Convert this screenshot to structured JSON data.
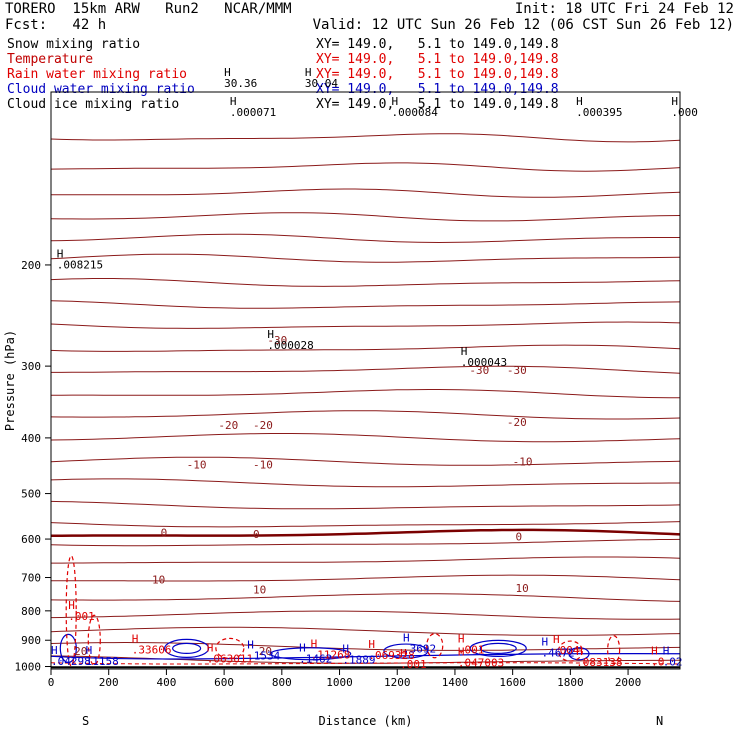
{
  "header": {
    "model": "TORERO  15km ARW   Run2   NCAR/MMM",
    "init": "Init: 18 UTC Fri 24 Feb 12",
    "fcst": "Fcst:   42 h",
    "valid": "Valid: 12 UTC Sun 26 Feb 12 (06 CST Sun 26 Feb 12)"
  },
  "legend": [
    {
      "name": "Snow mixing ratio",
      "xy": "XY= 149.0,   5.1 to 149.0,149.8",
      "color": "#000000"
    },
    {
      "name": "Temperature",
      "xy": "XY= 149.0,   5.1 to 149.0,149.8",
      "color": "#c00000"
    },
    {
      "name": "Rain water mixing ratio",
      "xy": "XY= 149.0,   5.1 to 149.0,149.8",
      "color": "#e00000"
    },
    {
      "name": "Cloud water mixing ratio",
      "xy": "XY= 149.0,   5.1 to 149.0,149.8",
      "color": "#0000c0"
    },
    {
      "name": "Cloud ice mixing ratio",
      "xy": "XY= 149.0,   5.1 to 149.0,149.8",
      "color": "#000000"
    }
  ],
  "chart_data": {
    "type": "line",
    "xlabel": "Distance (km)",
    "ylabel": "Pressure (hPa)",
    "xlim": [
      0,
      2180
    ],
    "ylim": [
      1010,
      100
    ],
    "x_ticks": [
      0,
      200,
      400,
      600,
      800,
      1000,
      1200,
      1400,
      1600,
      1800,
      2000
    ],
    "y_ticks": [
      200,
      300,
      400,
      500,
      600,
      700,
      800,
      900,
      1000
    ],
    "y_scale": "log",
    "end_labels": {
      "left": "S",
      "right": "N"
    },
    "temperature_labels": [
      {
        "x": 750,
        "p": 270,
        "text": "-30"
      },
      {
        "x": 1450,
        "p": 305,
        "text": "-30"
      },
      {
        "x": 1580,
        "p": 305,
        "text": "-30"
      },
      {
        "x": 580,
        "p": 380,
        "text": "-20"
      },
      {
        "x": 700,
        "p": 380,
        "text": "-20"
      },
      {
        "x": 1580,
        "p": 375,
        "text": "-20"
      },
      {
        "x": 470,
        "p": 445,
        "text": "-10"
      },
      {
        "x": 700,
        "p": 445,
        "text": "-10"
      },
      {
        "x": 1600,
        "p": 440,
        "text": "-10"
      },
      {
        "x": 380,
        "p": 585,
        "text": "0"
      },
      {
        "x": 700,
        "p": 588,
        "text": "0"
      },
      {
        "x": 1610,
        "p": 594,
        "text": "0"
      },
      {
        "x": 350,
        "p": 705,
        "text": "10"
      },
      {
        "x": 700,
        "p": 735,
        "text": "10"
      },
      {
        "x": 1610,
        "p": 730,
        "text": "10"
      },
      {
        "x": 80,
        "p": 940,
        "text": "20"
      },
      {
        "x": 720,
        "p": 940,
        "text": "20"
      }
    ],
    "snow_maxima": [
      {
        "x": 620,
        "p": 110,
        "text": ".000071"
      },
      {
        "x": 20,
        "p": 203,
        "text": ".008215"
      },
      {
        "x": 750,
        "p": 280,
        "text": ".000028"
      },
      {
        "x": 1420,
        "p": 300,
        "text": ".000043"
      },
      {
        "x": 1180,
        "p": 110,
        "text": ".000084"
      },
      {
        "x": 1820,
        "p": 110,
        "text": ".000395"
      },
      {
        "x": 2150,
        "p": 110,
        "text": ".000"
      },
      {
        "x": 600,
        "p": 98,
        "text": "30.36"
      },
      {
        "x": 880,
        "p": 98,
        "text": "30.04"
      }
    ],
    "rain_maxima": [
      {
        "x": 60,
        "p": 830,
        "text": ".001"
      },
      {
        "x": 280,
        "p": 950,
        "text": ".33606"
      },
      {
        "x": 540,
        "p": 985,
        "text": ".063011"
      },
      {
        "x": 900,
        "p": 968,
        "text": ".11268"
      },
      {
        "x": 1100,
        "p": 970,
        "text": ".069328"
      },
      {
        "x": 1210,
        "p": 1005,
        "text": ".001"
      },
      {
        "x": 1410,
        "p": 950,
        "text": ".001"
      },
      {
        "x": 1410,
        "p": 1000,
        "text": ".047003"
      },
      {
        "x": 1740,
        "p": 952,
        "text": ".004"
      },
      {
        "x": 1820,
        "p": 998,
        "text": ".083138"
      },
      {
        "x": 2080,
        "p": 995,
        "text": ".0"
      }
    ],
    "cloud_maxima": [
      {
        "x": 0,
        "p": 993,
        "text": ".04298"
      },
      {
        "x": 120,
        "p": 993,
        "text": "11158"
      },
      {
        "x": 680,
        "p": 973,
        "text": ".1534"
      },
      {
        "x": 860,
        "p": 985,
        "text": ".1462"
      },
      {
        "x": 1010,
        "p": 987,
        "text": ".1889"
      },
      {
        "x": 1220,
        "p": 945,
        "text": ".3692"
      },
      {
        "x": 1700,
        "p": 960,
        "text": ".4672"
      },
      {
        "x": 2120,
        "p": 995,
        "text": ".02"
      }
    ],
    "colors": {
      "temperature": "#8b1a1a",
      "freezing": "#7a0000",
      "rain": "#e00000",
      "cloud": "#0000c8",
      "snow": "#000000"
    },
    "grid": false
  }
}
